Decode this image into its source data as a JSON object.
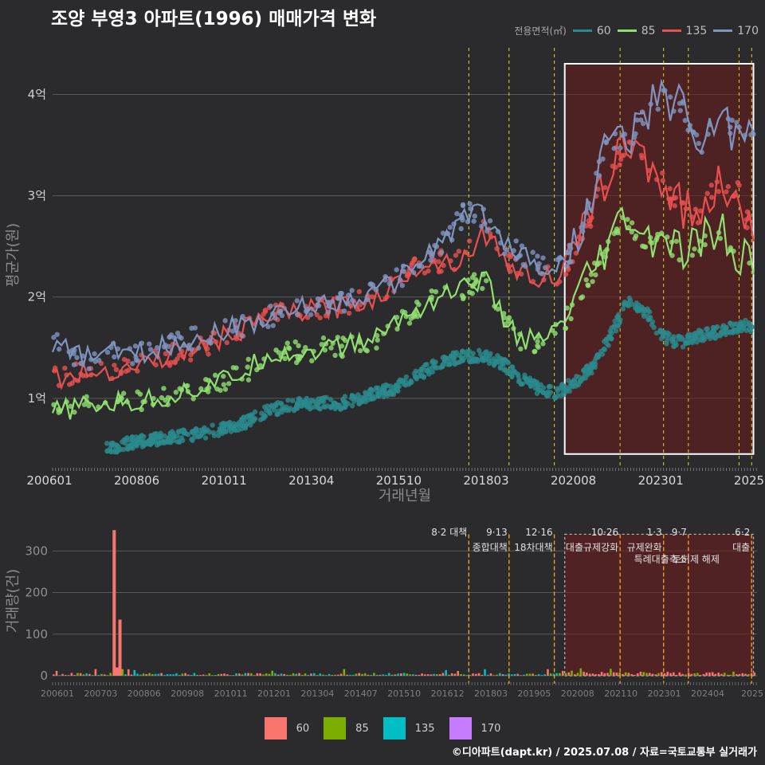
{
  "title": "조양 부영3 아파트(1996) 매매가격 변화",
  "credit": "©디아파트(dapt.kr) / 2025.07.08 / 자료=국토교통부 실거래가",
  "legend_top": {
    "title": "전용면적(㎡)",
    "items": [
      {
        "label": "60",
        "color": "#2a8a8c"
      },
      {
        "label": "85",
        "color": "#90e070"
      },
      {
        "label": "135",
        "color": "#e85050"
      },
      {
        "label": "170",
        "color": "#7f95c0"
      }
    ]
  },
  "legend_bottom": {
    "items": [
      {
        "label": "60",
        "color": "#f8766d"
      },
      {
        "label": "85",
        "color": "#7cae00"
      },
      {
        "label": "135",
        "color": "#00bfc4"
      },
      {
        "label": "170",
        "color": "#c77cff"
      }
    ]
  },
  "chart_data": [
    {
      "type": "line",
      "title": "조양 부영3 아파트(1996) 매매가격 변화",
      "xlabel": "거래년월",
      "ylabel": "평균가(원)",
      "x_ticks": [
        "200601",
        "200806",
        "201011",
        "201304",
        "201510",
        "201803",
        "202008",
        "202301",
        "2025"
      ],
      "y_ticks": [
        {
          "value": 1,
          "label": "1억"
        },
        {
          "value": 2,
          "label": "2억"
        },
        {
          "value": 3,
          "label": "3억"
        },
        {
          "value": 4,
          "label": "4억"
        }
      ],
      "ylim": [
        0.33,
        4.5
      ],
      "xlim": [
        2006.0,
        2025.6
      ],
      "highlight_range": [
        2020.25,
        2025.5
      ],
      "policy_lines": [
        2017.58,
        2018.7,
        2019.96,
        2021.79,
        2023.0,
        2023.69,
        2025.1,
        2025.45
      ],
      "series": [
        {
          "name": "60",
          "x": [
            2007.5,
            2008.0,
            2008.5,
            2009.0,
            2009.5,
            2010.0,
            2010.5,
            2011.0,
            2011.5,
            2012.0,
            2012.5,
            2013.0,
            2013.5,
            2014.0,
            2014.5,
            2015.0,
            2015.5,
            2016.0,
            2016.5,
            2017.0,
            2017.5,
            2018.0,
            2018.5,
            2019.0,
            2019.5,
            2020.0,
            2020.5,
            2021.0,
            2021.5,
            2022.0,
            2022.5,
            2023.0,
            2023.5,
            2024.0,
            2024.5,
            2025.0,
            2025.5
          ],
          "values": [
            0.5,
            0.55,
            0.58,
            0.6,
            0.62,
            0.65,
            0.68,
            0.72,
            0.78,
            0.88,
            0.92,
            0.95,
            0.95,
            0.95,
            1.0,
            1.05,
            1.1,
            1.2,
            1.3,
            1.38,
            1.42,
            1.42,
            1.35,
            1.2,
            1.1,
            1.05,
            1.15,
            1.3,
            1.6,
            1.95,
            1.85,
            1.6,
            1.55,
            1.62,
            1.65,
            1.7,
            1.72
          ]
        },
        {
          "name": "85",
          "x": [
            2006.0,
            2006.5,
            2007.0,
            2007.5,
            2008.0,
            2008.5,
            2009.0,
            2009.5,
            2010.0,
            2010.5,
            2011.0,
            2011.5,
            2012.0,
            2012.5,
            2013.0,
            2013.5,
            2014.0,
            2014.5,
            2015.0,
            2015.5,
            2016.0,
            2016.5,
            2017.0,
            2017.5,
            2018.0,
            2018.5,
            2019.0,
            2019.5,
            2020.0,
            2020.5,
            2021.0,
            2021.5,
            2022.0,
            2022.5,
            2023.0,
            2023.5,
            2024.0,
            2024.5,
            2025.0,
            2025.5
          ],
          "values": [
            0.85,
            0.9,
            0.92,
            0.95,
            0.95,
            0.97,
            1.0,
            1.05,
            1.1,
            1.15,
            1.2,
            1.3,
            1.45,
            1.45,
            1.45,
            1.5,
            1.5,
            1.55,
            1.6,
            1.75,
            1.85,
            1.95,
            2.05,
            2.1,
            2.2,
            1.8,
            1.6,
            1.55,
            1.65,
            1.9,
            2.2,
            2.5,
            2.8,
            2.5,
            2.6,
            2.4,
            2.5,
            2.7,
            2.4,
            2.35
          ]
        },
        {
          "name": "135",
          "x": [
            2006.0,
            2006.5,
            2007.0,
            2007.5,
            2008.0,
            2008.5,
            2009.0,
            2009.5,
            2010.0,
            2010.5,
            2011.0,
            2011.5,
            2012.0,
            2012.5,
            2013.0,
            2013.5,
            2014.0,
            2014.5,
            2015.0,
            2015.5,
            2016.0,
            2016.5,
            2017.0,
            2017.5,
            2018.0,
            2018.5,
            2019.0,
            2019.5,
            2020.0,
            2020.5,
            2021.0,
            2021.5,
            2022.0,
            2022.5,
            2023.0,
            2023.5,
            2024.0,
            2024.5,
            2025.0,
            2025.5
          ],
          "values": [
            1.2,
            1.22,
            1.25,
            1.28,
            1.3,
            1.35,
            1.4,
            1.45,
            1.5,
            1.55,
            1.65,
            1.7,
            1.8,
            1.85,
            1.85,
            1.9,
            1.9,
            1.95,
            2.0,
            2.1,
            2.3,
            2.35,
            2.35,
            2.4,
            2.65,
            2.4,
            2.25,
            2.2,
            2.2,
            2.4,
            2.8,
            3.3,
            3.5,
            3.4,
            3.1,
            2.9,
            2.8,
            3.1,
            3.1,
            2.6
          ]
        },
        {
          "name": "170",
          "x": [
            2006.0,
            2006.5,
            2007.0,
            2007.5,
            2008.0,
            2008.5,
            2009.0,
            2009.5,
            2010.0,
            2010.5,
            2011.0,
            2011.5,
            2012.0,
            2012.5,
            2013.0,
            2013.5,
            2014.0,
            2014.5,
            2015.0,
            2015.5,
            2016.0,
            2016.5,
            2017.0,
            2017.5,
            2018.0,
            2018.5,
            2019.0,
            2019.5,
            2020.0,
            2020.5,
            2021.0,
            2021.5,
            2022.0,
            2022.5,
            2023.0,
            2023.5,
            2024.0,
            2024.5,
            2025.0,
            2025.5
          ],
          "values": [
            1.55,
            1.45,
            1.4,
            1.45,
            1.45,
            1.45,
            1.5,
            1.55,
            1.6,
            1.65,
            1.7,
            1.75,
            1.8,
            1.85,
            1.9,
            1.95,
            1.95,
            2.0,
            2.05,
            2.15,
            2.3,
            2.45,
            2.6,
            2.85,
            2.8,
            2.55,
            2.45,
            2.3,
            2.25,
            2.5,
            3.0,
            3.6,
            3.5,
            3.8,
            4.0,
            3.9,
            3.5,
            3.75,
            3.65,
            3.6
          ]
        }
      ]
    },
    {
      "type": "bar",
      "title": "",
      "xlabel": "",
      "ylabel": "거래량(건)",
      "x_ticks": [
        "200601",
        "200703",
        "200806",
        "200908",
        "201011",
        "201201",
        "201304",
        "201407",
        "201510",
        "201612",
        "201803",
        "201905",
        "202008",
        "202110",
        "202301",
        "202404",
        "2025"
      ],
      "y_ticks": [
        0,
        100,
        200,
        300
      ],
      "ylim": [
        0,
        360
      ],
      "xlim": [
        2006.0,
        2025.6
      ],
      "highlight_range": [
        2020.25,
        2025.5
      ],
      "spikes": [
        {
          "x": 2007.67,
          "value": 350,
          "series": "60"
        },
        {
          "x": 2007.83,
          "value": 135,
          "series": "60"
        },
        {
          "x": 2007.75,
          "value": 20,
          "series": "60"
        }
      ],
      "baseline_volume": {
        "before_2020": 4,
        "after_2020": 6
      },
      "policy_annotations": [
        {
          "x": 2017.58,
          "date": "8·2 대책",
          "text": ""
        },
        {
          "x": 2018.7,
          "date": "9·13",
          "text": "종합대책"
        },
        {
          "x": 2019.96,
          "date": "12·16",
          "text": "18차대책"
        },
        {
          "x": 2021.79,
          "date": "10·26",
          "text": "대출규제강화"
        },
        {
          "x": 2023.0,
          "date": "1·3",
          "text": "규제완화"
        },
        {
          "x": 2023.69,
          "date": "9·7",
          "text": "특례대출축소"
        },
        {
          "x": 2024.6,
          "date": "",
          "text": "토허제 해제"
        },
        {
          "x": 2025.45,
          "date": "6·2",
          "text": "대출"
        }
      ]
    }
  ]
}
